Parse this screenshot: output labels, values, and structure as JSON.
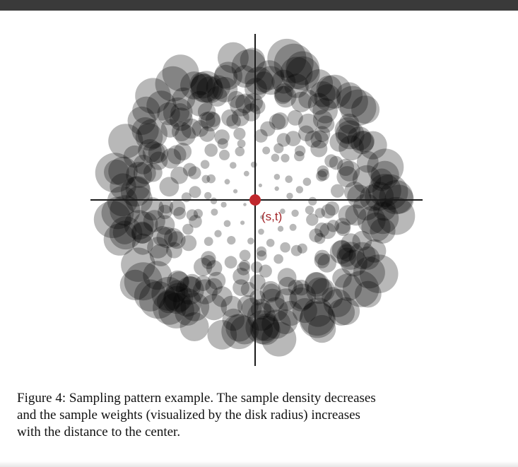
{
  "figure": {
    "center_label": "(s,t)",
    "colors": {
      "disk": "#000000",
      "center": "#c0282d",
      "axis": "#1a1a1a"
    }
  },
  "caption": {
    "lines": [
      "Figure 4: Sampling pattern example. The sample density decreases",
      "and the sample weights (visualized by the disk radius) increases",
      "with the distance to the center."
    ]
  }
}
